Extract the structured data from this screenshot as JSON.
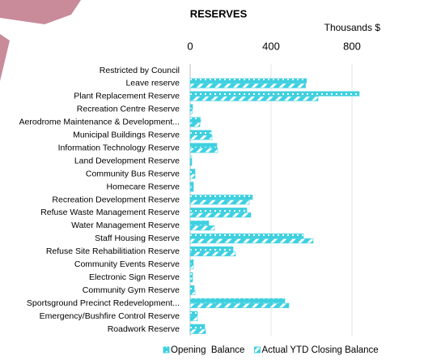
{
  "chart_data": {
    "type": "hbar",
    "title": "RESERVES",
    "x_label": "Thousands $",
    "categories": [
      "Restricted by Council",
      "Leave reserve",
      "Plant Replacement Reserve",
      "Recreation Centre Reserve",
      "Aerodrome Maintenance  & Development...",
      "Municipal Buildings Reserve",
      "Information Technology Reserve",
      "Land Development Reserve",
      "Community Bus Reserve",
      "Homecare Reserve",
      "Recreation Development Reserve",
      "Refuse Waste Management Reserve",
      "Water Management Reserve",
      "Staff Housing Reserve",
      "Refuse Site Rehabilitiation Reserve",
      "Community Events Reserve",
      "Electronic Sign Reserve",
      "Community Gym Reserve",
      "Sportsground Precinct Redevelopment...",
      "Emergency/Bushfire Control Reserve",
      "Roadwork Reserve"
    ],
    "series": [
      {
        "name": "Opening  Balance",
        "color": "#3fd0e0",
        "values": [
          0,
          575,
          836,
          12,
          52,
          104,
          132,
          8,
          24,
          16,
          308,
          280,
          92,
          560,
          212,
          16,
          12,
          20,
          468,
          36,
          72
        ]
      },
      {
        "name": "Actual YTD Closing Balance",
        "color": "#3fd0e0",
        "values": [
          0,
          570,
          632,
          10,
          48,
          108,
          136,
          8,
          24,
          16,
          292,
          300,
          120,
          608,
          224,
          16,
          12,
          24,
          488,
          36,
          76
        ]
      }
    ],
    "xlim": [
      0,
      900
    ],
    "xticks": [
      0,
      400,
      800
    ],
    "grid": true
  }
}
